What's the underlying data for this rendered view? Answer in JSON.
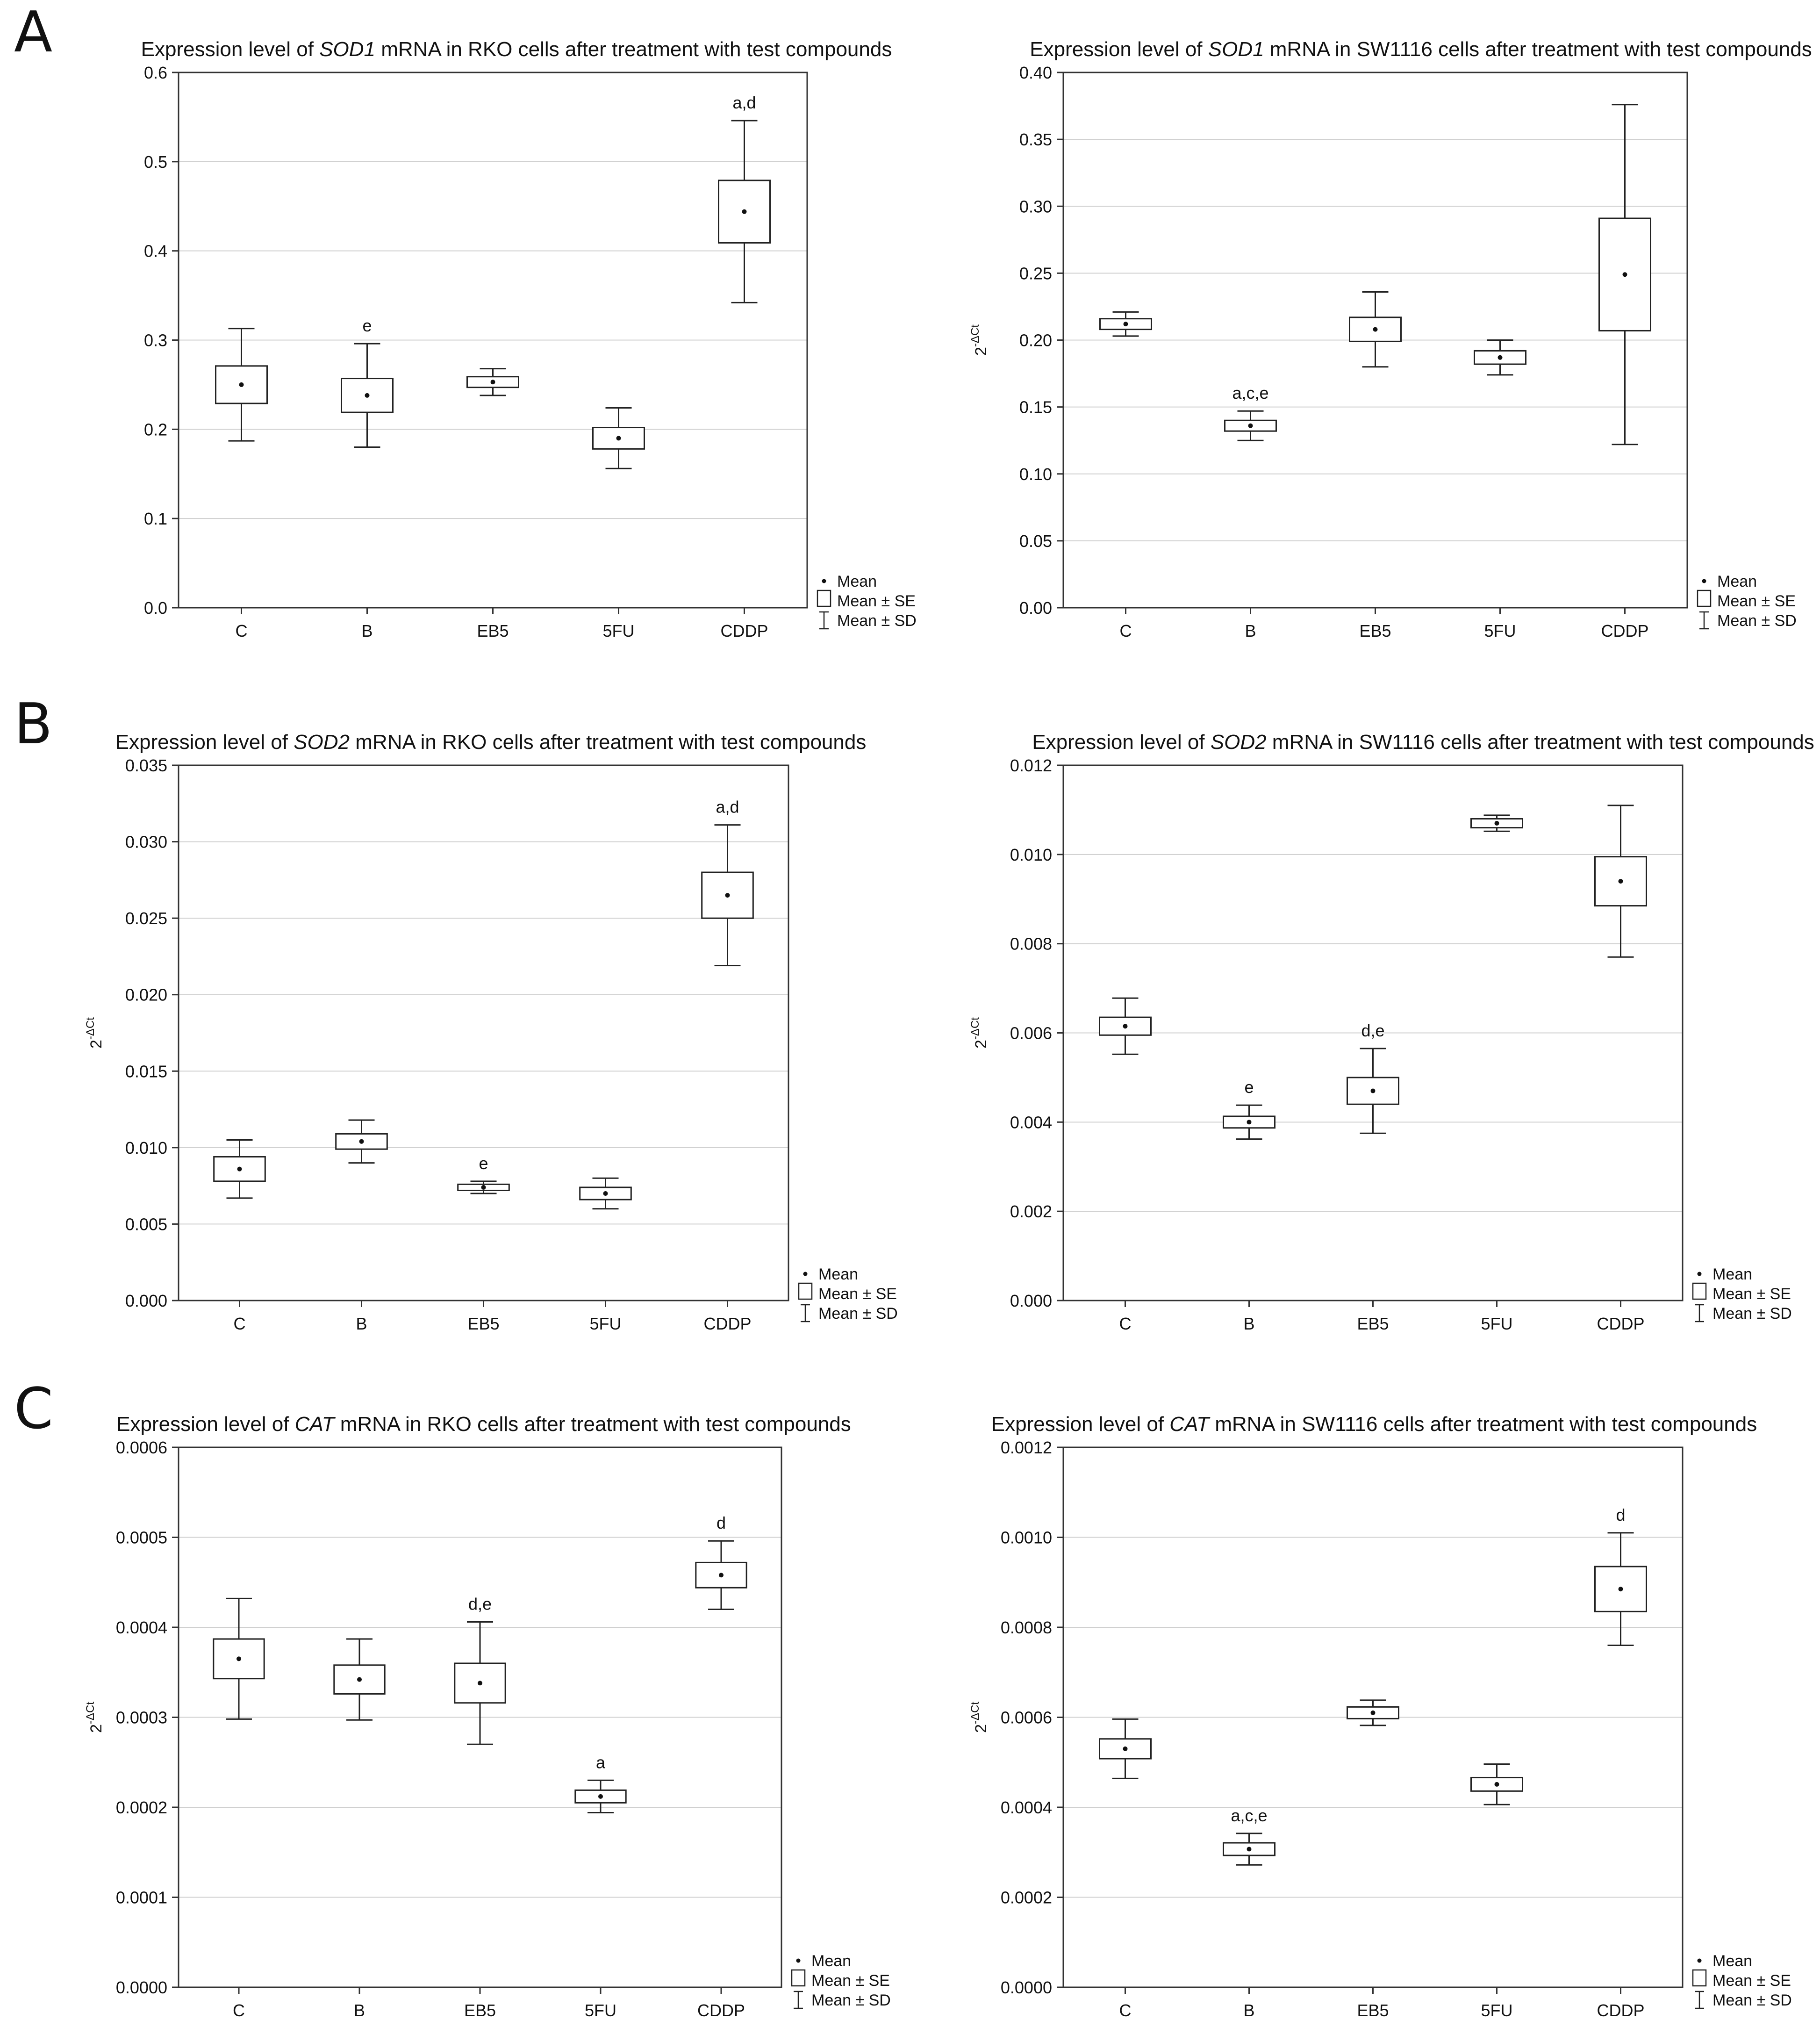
{
  "figure": {
    "panel_letters": [
      "A",
      "B",
      "C"
    ],
    "legend": {
      "mean": "Mean",
      "se": "Mean ± SE",
      "sd": "Mean ± SD"
    },
    "y_label": {
      "base": "2",
      "sup": "-ΔCt"
    }
  },
  "chart_data": [
    {
      "type": "box",
      "title": {
        "pre": "Expression level of ",
        "gene": "SOD1",
        "post": " mRNA in RKO cells after treatment with test compounds"
      },
      "ylabel": "",
      "categories": [
        "C",
        "B",
        "EB5",
        "5FU",
        "CDDP"
      ],
      "ylim": [
        0,
        0.6
      ],
      "yticks": [
        "0.0",
        "0.1",
        "0.2",
        "0.3",
        "0.4",
        "0.5",
        "0.6"
      ],
      "mean": [
        0.25,
        0.238,
        0.253,
        0.19,
        0.444
      ],
      "se": [
        0.021,
        0.019,
        0.006,
        0.012,
        0.035
      ],
      "sd": [
        0.063,
        0.058,
        0.015,
        0.034,
        0.102
      ],
      "annotations": [
        "",
        "e",
        "",
        "",
        "a,d"
      ]
    },
    {
      "type": "box",
      "title": {
        "pre": "Expression level of ",
        "gene": "SOD1",
        "post": " mRNA in SW1116 cells after treatment with test compounds"
      },
      "ylabel": "2-ΔCt",
      "categories": [
        "C",
        "B",
        "EB5",
        "5FU",
        "CDDP"
      ],
      "ylim": [
        0,
        0.4
      ],
      "yticks": [
        "0.00",
        "0.05",
        "0.10",
        "0.15",
        "0.20",
        "0.25",
        "0.30",
        "0.35",
        "0.40"
      ],
      "mean": [
        0.212,
        0.136,
        0.208,
        0.187,
        0.249
      ],
      "se": [
        0.004,
        0.004,
        0.009,
        0.005,
        0.042
      ],
      "sd": [
        0.009,
        0.011,
        0.028,
        0.013,
        0.127
      ],
      "annotations": [
        "",
        "a,c,e",
        "",
        "",
        ""
      ]
    },
    {
      "type": "box",
      "title": {
        "pre": "Expression level of ",
        "gene": "SOD2",
        "post": " mRNA in RKO cells after treatment with test compounds"
      },
      "ylabel": "2-ΔCt",
      "categories": [
        "C",
        "B",
        "EB5",
        "5FU",
        "CDDP"
      ],
      "ylim": [
        0,
        0.035
      ],
      "yticks": [
        "0.000",
        "0.005",
        "0.010",
        "0.015",
        "0.020",
        "0.025",
        "0.030",
        "0.035"
      ],
      "mean": [
        0.0086,
        0.0104,
        0.0074,
        0.007,
        0.0265
      ],
      "se": [
        0.0008,
        0.0005,
        0.0002,
        0.0004,
        0.0015
      ],
      "sd": [
        0.0019,
        0.0014,
        0.0004,
        0.001,
        0.0046
      ],
      "annotations": [
        "",
        "",
        "e",
        "",
        "a,d"
      ]
    },
    {
      "type": "box",
      "title": {
        "pre": "Expression level of ",
        "gene": "SOD2",
        "post": " mRNA in SW1116 cells after treatment with test compounds"
      },
      "ylabel": "2-ΔCt",
      "categories": [
        "C",
        "B",
        "EB5",
        "5FU",
        "CDDP"
      ],
      "ylim": [
        0,
        0.012
      ],
      "yticks": [
        "0.000",
        "0.002",
        "0.004",
        "0.006",
        "0.008",
        "0.010",
        "0.012"
      ],
      "mean": [
        0.00615,
        0.004,
        0.0047,
        0.0107,
        0.0094
      ],
      "se": [
        0.0002,
        0.00013,
        0.0003,
        0.0001,
        0.00055
      ],
      "sd": [
        0.00063,
        0.00038,
        0.00095,
        0.00018,
        0.0017
      ],
      "annotations": [
        "",
        "e",
        "d,e",
        "",
        ""
      ]
    },
    {
      "type": "box",
      "title": {
        "pre": "Expression level of ",
        "gene": "CAT",
        "post": " mRNA in RKO cells after treatment with test compounds"
      },
      "ylabel": "2-ΔCt",
      "categories": [
        "C",
        "B",
        "EB5",
        "5FU",
        "CDDP"
      ],
      "ylim": [
        0,
        0.0006
      ],
      "yticks": [
        "0.0000",
        "0.0001",
        "0.0002",
        "0.0003",
        "0.0004",
        "0.0005",
        "0.0006"
      ],
      "mean": [
        0.000365,
        0.000342,
        0.000338,
        0.000212,
        0.000458
      ],
      "se": [
        2.2e-05,
        1.6e-05,
        2.2e-05,
        7e-06,
        1.4e-05
      ],
      "sd": [
        6.7e-05,
        4.5e-05,
        6.8e-05,
        1.8e-05,
        3.8e-05
      ],
      "annotations": [
        "",
        "",
        "d,e",
        "a",
        "d"
      ]
    },
    {
      "type": "box",
      "title": {
        "pre": "Expression level of ",
        "gene": "CAT",
        "post": " mRNA in SW1116 cells after treatment with test compounds"
      },
      "ylabel": "2-ΔCt",
      "categories": [
        "C",
        "B",
        "EB5",
        "5FU",
        "CDDP"
      ],
      "ylim": [
        0,
        0.0012
      ],
      "yticks": [
        "0.0000",
        "0.0002",
        "0.0004",
        "0.0006",
        "0.0008",
        "0.0010",
        "0.0012"
      ],
      "mean": [
        0.00053,
        0.000307,
        0.00061,
        0.000451,
        0.000885
      ],
      "se": [
        2.2e-05,
        1.4e-05,
        1.3e-05,
        1.5e-05,
        5e-05
      ],
      "sd": [
        6.6e-05,
        3.5e-05,
        2.8e-05,
        4.5e-05,
        0.000125
      ],
      "annotations": [
        "",
        "a,c,e",
        "",
        "",
        "d"
      ]
    }
  ]
}
